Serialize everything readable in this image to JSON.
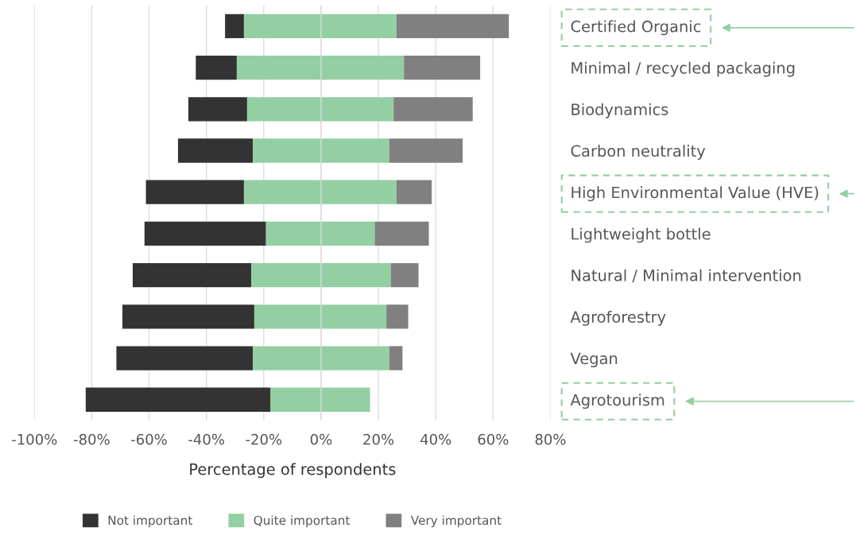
{
  "chart_data": {
    "type": "bar",
    "orientation": "horizontal",
    "xlabel": "Percentage of respondents",
    "categories": [
      "Certified Organic",
      "Minimal / recycled packaging",
      "Biodynamics",
      "Carbon neutrality",
      "High Environmental Value (HVE)",
      "Lightweight bottle",
      "Natural / Minimal intervention",
      "Agroforestry",
      "Vegan",
      "Agrotourism"
    ],
    "series": [
      {
        "name": "Not important",
        "color": "#333333",
        "base": [
          -33.5,
          -43.7,
          -46.3,
          -49.9,
          -61.1,
          -61.6,
          -65.7,
          -69.3,
          -71.4,
          -82.1
        ],
        "values": [
          6.6,
          14.3,
          20.5,
          26.1,
          34.2,
          42.4,
          41.4,
          46.0,
          47.6,
          64.5
        ]
      },
      {
        "name": "Quite important",
        "color": "#93cfa2",
        "base": [
          -26.9,
          -29.4,
          -25.8,
          -23.8,
          -26.9,
          -19.2,
          -24.3,
          -23.3,
          -23.8,
          -17.6
        ],
        "values": [
          53.2,
          58.3,
          51.1,
          47.6,
          53.2,
          37.9,
          48.6,
          46.1,
          47.6,
          34.7
        ]
      },
      {
        "name": "Very important",
        "color": "#808080",
        "base": [
          26.3,
          28.9,
          25.3,
          23.8,
          26.3,
          18.7,
          24.3,
          22.8,
          23.8,
          null
        ],
        "values": [
          39.2,
          26.6,
          27.6,
          25.6,
          12.3,
          18.9,
          9.7,
          7.6,
          4.6,
          null
        ]
      }
    ],
    "xlim": [
      -100,
      80
    ],
    "xticks": [
      {
        "value": -100,
        "label": "-100%"
      },
      {
        "value": -80,
        "label": "-80%"
      },
      {
        "value": -60,
        "label": "-60%"
      },
      {
        "value": -40,
        "label": "-40%"
      },
      {
        "value": -20,
        "label": "-20%"
      },
      {
        "value": 0,
        "label": "0%"
      },
      {
        "value": 20,
        "label": "20%"
      },
      {
        "value": 40,
        "label": "40%"
      },
      {
        "value": 60,
        "label": "60%"
      },
      {
        "value": 80,
        "label": "80%"
      }
    ],
    "grid": "x",
    "legend": "bottom"
  }
}
